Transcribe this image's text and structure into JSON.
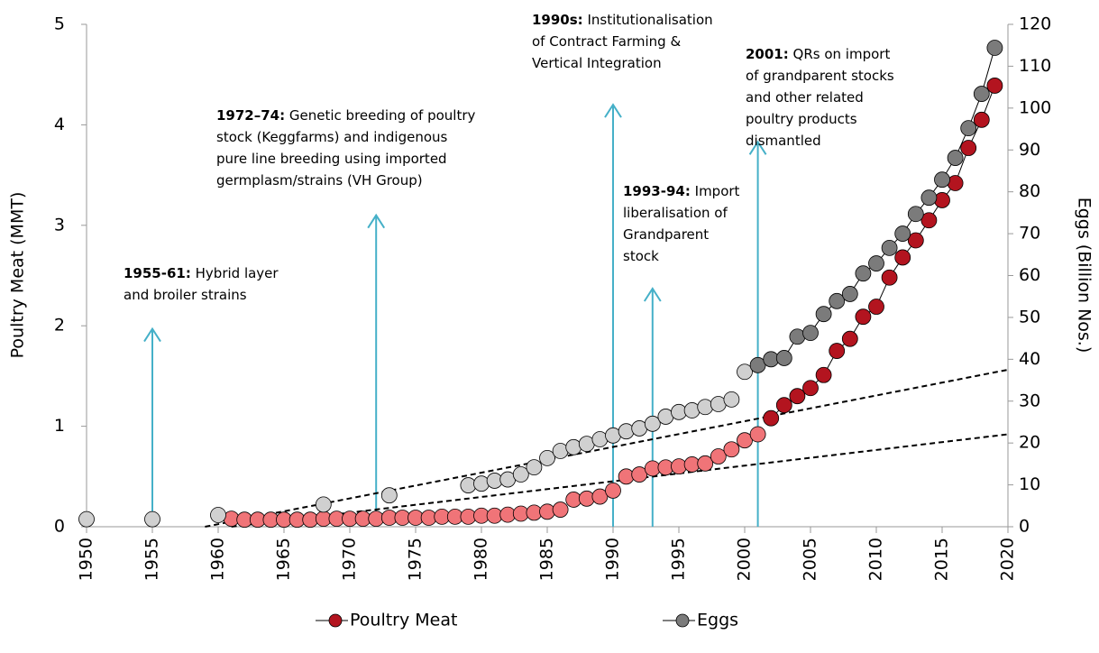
{
  "chart_data": {
    "type": "scatter",
    "y_label": "Poultry Meat (MMT)",
    "y2_label": "Eggs (Billion Nos.)",
    "xlim": [
      1950,
      2020
    ],
    "xticks": [
      1950,
      1955,
      1960,
      1965,
      1970,
      1975,
      1980,
      1985,
      1990,
      1995,
      2000,
      2005,
      2010,
      2015,
      2020
    ],
    "ylim": [
      0,
      5
    ],
    "yticks": [
      0,
      1,
      2,
      3,
      4,
      5
    ],
    "y2lim": [
      0,
      120
    ],
    "y2ticks": [
      0,
      10,
      20,
      30,
      40,
      50,
      60,
      70,
      80,
      90,
      100,
      110,
      120
    ],
    "series": [
      {
        "name": "Poultry Meat",
        "color": "#b3141f",
        "early_color": "#f07478",
        "early_until": 2001,
        "x": [
          1961,
          1962,
          1963,
          1964,
          1965,
          1966,
          1967,
          1968,
          1969,
          1970,
          1971,
          1972,
          1973,
          1974,
          1975,
          1976,
          1977,
          1978,
          1979,
          1980,
          1981,
          1982,
          1983,
          1984,
          1985,
          1986,
          1987,
          1988,
          1989,
          1990,
          1991,
          1992,
          1993,
          1994,
          1995,
          1996,
          1997,
          1998,
          1999,
          2000,
          2001,
          2002,
          2003,
          2004,
          2005,
          2006,
          2007,
          2008,
          2009,
          2010,
          2011,
          2012,
          2013,
          2014,
          2015,
          2016,
          2017,
          2018,
          2019
        ],
        "values": [
          0.08,
          0.07,
          0.07,
          0.07,
          0.07,
          0.07,
          0.07,
          0.08,
          0.08,
          0.08,
          0.08,
          0.08,
          0.09,
          0.09,
          0.09,
          0.09,
          0.1,
          0.1,
          0.1,
          0.11,
          0.11,
          0.12,
          0.13,
          0.14,
          0.15,
          0.17,
          0.27,
          0.28,
          0.3,
          0.36,
          0.5,
          0.52,
          0.58,
          0.59,
          0.6,
          0.62,
          0.63,
          0.7,
          0.77,
          0.86,
          0.92,
          1.08,
          1.21,
          1.3,
          1.38,
          1.51,
          1.75,
          1.87,
          2.09,
          2.19,
          2.48,
          2.68,
          2.85,
          3.05,
          3.25,
          3.42,
          3.77,
          4.05,
          4.39
        ]
      },
      {
        "name": "Eggs",
        "axis": "y2",
        "color": "#7b7b7b",
        "early_color": "#d0d0d0",
        "early_until": 2000,
        "x": [
          1950,
          1955,
          1960,
          1968,
          1973,
          1979,
          1980,
          1981,
          1982,
          1983,
          1984,
          1985,
          1986,
          1987,
          1988,
          1989,
          1990,
          1991,
          1992,
          1993,
          1994,
          1995,
          1996,
          1997,
          1998,
          1999,
          2000,
          2001,
          2002,
          2003,
          2004,
          2005,
          2006,
          2007,
          2008,
          2009,
          2010,
          2011,
          2012,
          2013,
          2014,
          2015,
          2016,
          2017,
          2018,
          2019
        ],
        "values": [
          1.8,
          1.8,
          2.8,
          5.3,
          7.5,
          9.9,
          10.3,
          11.0,
          11.3,
          12.5,
          14.2,
          16.4,
          18.1,
          19.0,
          19.8,
          20.9,
          21.8,
          22.8,
          23.5,
          24.6,
          26.3,
          27.4,
          27.8,
          28.6,
          29.3,
          30.4,
          37.0,
          38.6,
          40.0,
          40.3,
          45.4,
          46.3,
          50.8,
          53.9,
          55.6,
          60.5,
          62.9,
          66.6,
          70.0,
          74.7,
          78.6,
          82.9,
          88.1,
          95.2,
          103.4,
          114.4
        ]
      }
    ],
    "trend_lines": [
      {
        "axis": "y2",
        "x": [
          1959,
          2020
        ],
        "values": [
          0,
          37.5
        ]
      },
      {
        "x": [
          1961,
          2020
        ],
        "values": [
          0,
          0.92
        ]
      }
    ],
    "annotations": [
      {
        "bold": "1955-61:",
        "text": [
          "Hybrid layer",
          "and broiler strains"
        ],
        "x": 1955,
        "y": 1.97
      },
      {
        "bold": "1972–74:",
        "text": [
          "Genetic breeding of poultry",
          "stock (Keggfarms) and indigenous",
          "pure line breeding using imported",
          "germplasm/strains (VH Group)"
        ],
        "x": 1972,
        "y": 3.1
      },
      {
        "bold": "1990s:",
        "text": [
          "Institutionalisation",
          "of Contract Farming &",
          "Vertical Integration"
        ],
        "x": 1990,
        "y": 4.2
      },
      {
        "bold": "1993-94:",
        "text": [
          "Import",
          "liberalisation of",
          "Grandparent",
          "stock"
        ],
        "x": 1993,
        "y": 2.37
      },
      {
        "bold": "2001:",
        "text": [
          "QRs on import",
          "of grandparent stocks",
          "and other related",
          "poultry products",
          "dismantled"
        ],
        "x": 2001,
        "y": 3.83
      }
    ]
  }
}
